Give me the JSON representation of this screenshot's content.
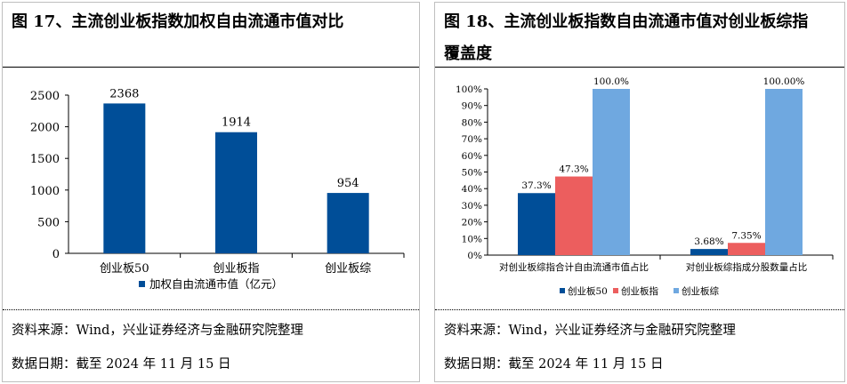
{
  "figure17": {
    "title": "图 17、主流创业板指数加权自由流通市值对比",
    "source": "资料来源：Wind，兴业证券经济与金融研究院整理",
    "date": "数据日期：截至 2024 年 11 月 15 日",
    "chart_data": {
      "type": "bar",
      "categories": [
        "创业板50",
        "创业板指",
        "创业板综"
      ],
      "series": [
        {
          "name": "加权自由流通市值（亿元）",
          "values": [
            2368,
            1914,
            954
          ],
          "color": "#004e98"
        }
      ],
      "data_labels": [
        "2368",
        "1914",
        "954"
      ],
      "ylim": [
        0,
        2500
      ],
      "yticks": [
        "0",
        "500",
        "1000",
        "1500",
        "2000",
        "2500"
      ],
      "legend": "bottom",
      "grid": false
    }
  },
  "figure18": {
    "title_line1": "图 18、主流创业板指数自由流通市值对创业板综指",
    "title_line2": "覆盖度",
    "source": "资料来源：Wind，兴业证券经济与金融研究院整理",
    "date": "数据日期：截至 2024 年 11 月 15 日",
    "chart_data": {
      "type": "bar",
      "categories": [
        "对创业板综指合计自由流通市值占比",
        "对创业板综指成分股数量占比"
      ],
      "series": [
        {
          "name": "创业板50",
          "values": [
            37.3,
            3.68
          ],
          "labels": [
            "37.3%",
            "3.68%"
          ],
          "color": "#004e98"
        },
        {
          "name": "创业板指",
          "values": [
            47.3,
            7.35
          ],
          "labels": [
            "47.3%",
            "7.35%"
          ],
          "color": "#ec5e5e"
        },
        {
          "name": "创业板综",
          "values": [
            100.0,
            100.0
          ],
          "labels": [
            "100.0%",
            "100.00%"
          ],
          "color": "#6fa8e0"
        }
      ],
      "ylim": [
        0,
        100
      ],
      "yticks": [
        "0%",
        "10%",
        "20%",
        "30%",
        "40%",
        "50%",
        "60%",
        "70%",
        "80%",
        "90%",
        "100%"
      ],
      "legend": "bottom",
      "grid": false
    }
  }
}
